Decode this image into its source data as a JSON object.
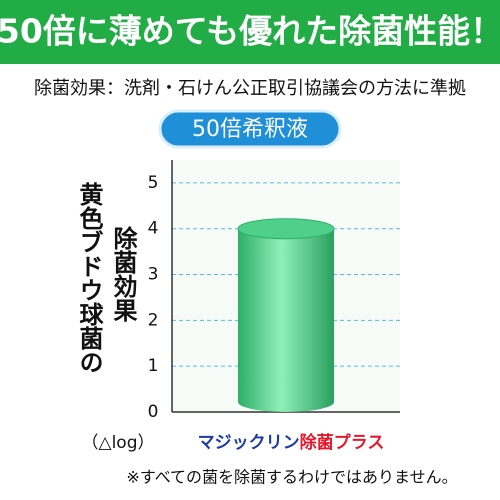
{
  "chart_data": {
    "type": "bar",
    "title": "50倍に薄めても優れた除菌性能！",
    "subtitle": "除菌効果：洗剤・石けん公正取引協議会の方法に準拠",
    "condition": "50倍希釈液",
    "y_label_lines": [
      "黄色ブドウ球菌の",
      "除菌効果"
    ],
    "y_unit": "（△log）",
    "categories": [
      [
        "マジックリン",
        "除菌プラス"
      ]
    ],
    "category_colors": [
      "#1b3aa6",
      "#e5182c"
    ],
    "values": [
      4.0
    ],
    "color": "#4fd08a",
    "ylim": [
      0,
      5.5
    ],
    "yticks": [
      0,
      1,
      2,
      3,
      4,
      5
    ],
    "grid": true,
    "footnote": "※すべての菌を除菌するわけではありません。"
  }
}
